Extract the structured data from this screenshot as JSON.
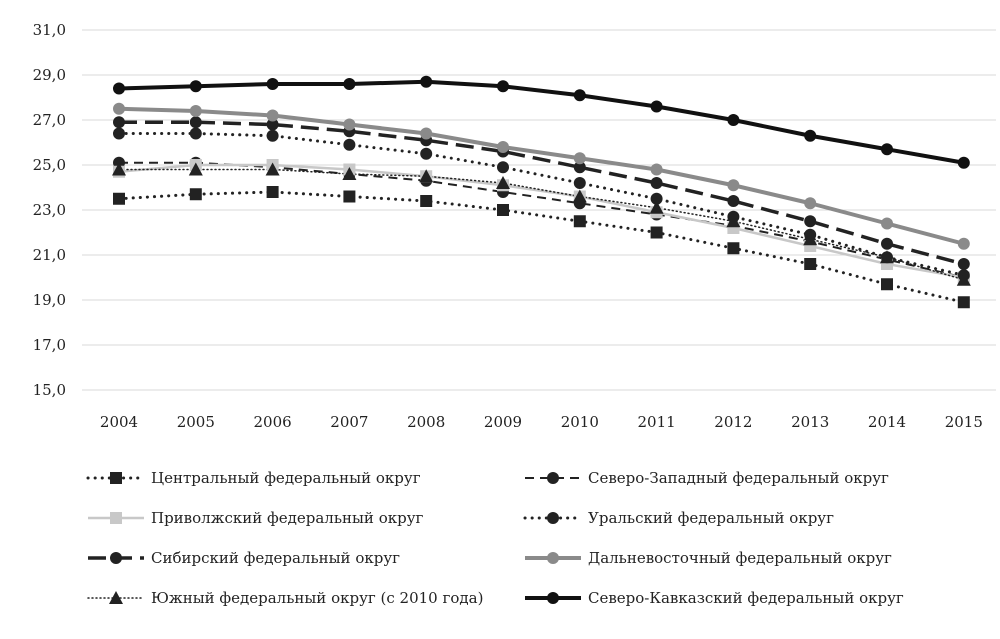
{
  "chart_data": {
    "type": "line",
    "title": "",
    "xlabel": "",
    "ylabel": "",
    "ylim": [
      15,
      31
    ],
    "yticks": [
      "15,0",
      "17,0",
      "19,0",
      "21,0",
      "23,0",
      "25,0",
      "27,0",
      "29,0",
      "31,0"
    ],
    "grid": true,
    "legend_position": "bottom",
    "categories": [
      "2004",
      "2005",
      "2006",
      "2007",
      "2008",
      "2009",
      "2010",
      "2011",
      "2012",
      "2013",
      "2014",
      "2015"
    ],
    "series": [
      {
        "name": "Центральный федеральный округ",
        "color": "#222222",
        "dash": "dotted",
        "width": 3,
        "marker": "square",
        "values": [
          23.5,
          23.7,
          23.8,
          23.6,
          23.4,
          23.0,
          22.5,
          22.0,
          21.3,
          20.6,
          19.7,
          18.9
        ]
      },
      {
        "name": "Северо-Западный федеральный округ",
        "color": "#222222",
        "dash": "dashed",
        "width": 2,
        "marker": "circle",
        "values": [
          25.1,
          25.1,
          24.9,
          24.6,
          24.3,
          23.8,
          23.3,
          22.8,
          22.3,
          21.6,
          20.8,
          20.0
        ]
      },
      {
        "name": "Приволжский федеральный округ",
        "color": "#c8c8c8",
        "dash": "solid",
        "width": 2.5,
        "marker": "square",
        "values": [
          24.7,
          25.0,
          25.0,
          24.8,
          24.5,
          24.1,
          23.6,
          22.9,
          22.2,
          21.4,
          20.6,
          20.0
        ]
      },
      {
        "name": "Уральский федеральный округ",
        "color": "#222222",
        "dash": "dotted",
        "width": 3,
        "marker": "circle",
        "values": [
          26.4,
          26.4,
          26.3,
          25.9,
          25.5,
          24.9,
          24.2,
          23.5,
          22.7,
          21.9,
          20.9,
          20.1
        ]
      },
      {
        "name": "Сибирский федеральный округ",
        "color": "#222222",
        "dash": "longdash",
        "width": 3.5,
        "marker": "circle",
        "values": [
          26.9,
          26.9,
          26.8,
          26.5,
          26.1,
          25.6,
          24.9,
          24.2,
          23.4,
          22.5,
          21.5,
          20.6
        ]
      },
      {
        "name": "Дальневосточный федеральный округ",
        "color": "#8a8a8a",
        "dash": "solid",
        "width": 4,
        "marker": "circle",
        "values": [
          27.5,
          27.4,
          27.2,
          26.8,
          26.4,
          25.8,
          25.3,
          24.8,
          24.1,
          23.3,
          22.4,
          21.5
        ]
      },
      {
        "name": "Южный федеральный округ (с 2010 года)",
        "color": "#222222",
        "dash": "finedot",
        "width": 1.5,
        "marker": "triangle",
        "values": [
          24.8,
          24.8,
          24.8,
          24.6,
          24.5,
          24.2,
          23.6,
          23.1,
          22.5,
          21.7,
          20.9,
          19.9
        ]
      },
      {
        "name": "Северо-Кавказский федеральный округ",
        "color": "#111111",
        "dash": "solid",
        "width": 4,
        "marker": "circle",
        "values": [
          28.4,
          28.5,
          28.6,
          28.6,
          28.7,
          28.5,
          28.1,
          27.6,
          27.0,
          26.3,
          25.7,
          25.1
        ]
      }
    ]
  }
}
